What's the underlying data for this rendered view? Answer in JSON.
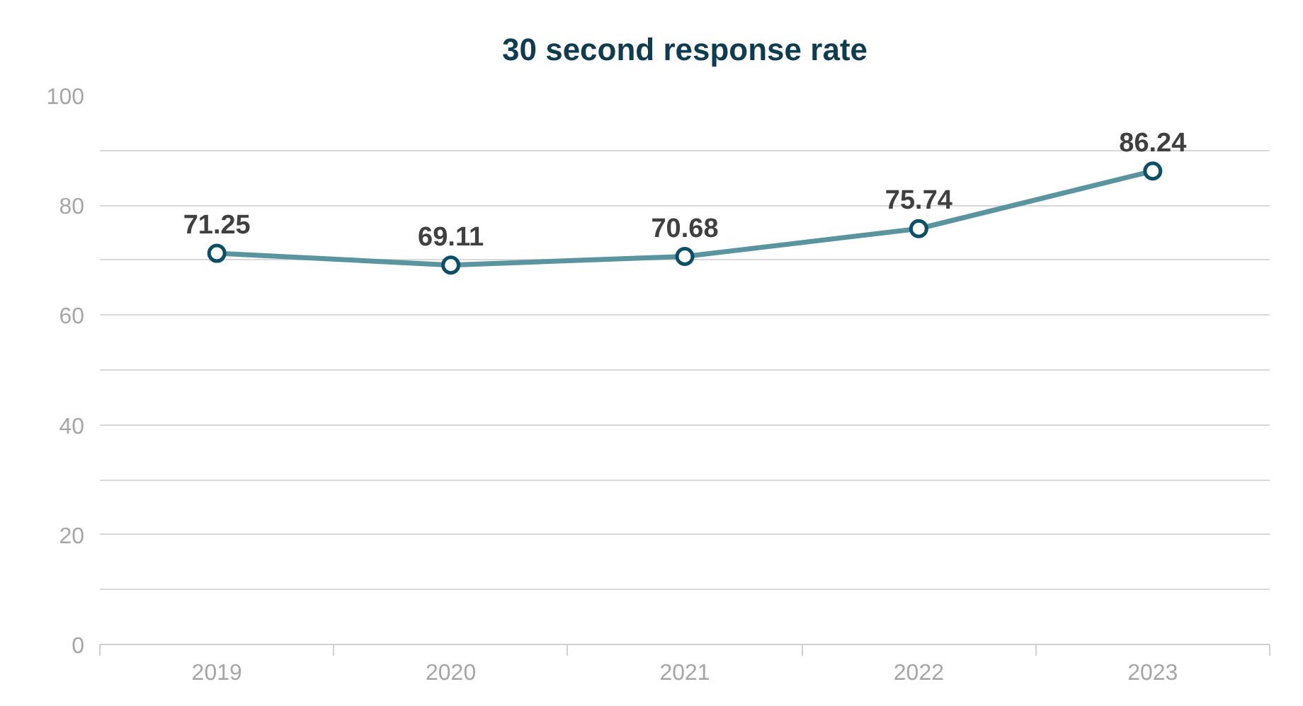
{
  "chart_data": {
    "type": "line",
    "title": "30 second response rate",
    "categories": [
      "2019",
      "2020",
      "2021",
      "2022",
      "2023"
    ],
    "series": [
      {
        "color": "#5a959f",
        "values": [
          71.25,
          69.11,
          70.68,
          75.74,
          86.24
        ]
      }
    ],
    "ylim": [
      0,
      100
    ],
    "yticks": [
      0,
      {
        "value": 10,
        "label": null
      },
      20,
      {
        "value": 30,
        "label": null
      },
      40,
      {
        "value": 50,
        "label": null
      },
      60,
      {
        "value": 70,
        "label": null
      },
      80,
      {
        "value": 90,
        "label": null
      },
      100
    ],
    "grid": "y",
    "marker": "circle",
    "data_labels": true
  }
}
